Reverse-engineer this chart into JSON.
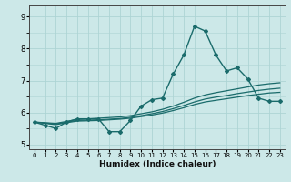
{
  "xlabel": "Humidex (Indice chaleur)",
  "ylabel": "",
  "bg_color": "#cce8e8",
  "line_color": "#1a6b6b",
  "grid_color": "#add4d4",
  "xlim": [
    -0.5,
    23.5
  ],
  "ylim": [
    4.85,
    9.35
  ],
  "yticks": [
    5,
    6,
    7,
    8,
    9
  ],
  "xticks": [
    0,
    1,
    2,
    3,
    4,
    5,
    6,
    7,
    8,
    9,
    10,
    11,
    12,
    13,
    14,
    15,
    16,
    17,
    18,
    19,
    20,
    21,
    22,
    23
  ],
  "series": [
    {
      "x": [
        0,
        1,
        2,
        3,
        4,
        5,
        6,
        7,
        8,
        9,
        10,
        11,
        12,
        13,
        14,
        15,
        16,
        17,
        18,
        19,
        20,
        21,
        22,
        23
      ],
      "y": [
        5.7,
        5.6,
        5.5,
        5.7,
        5.8,
        5.8,
        5.8,
        5.4,
        5.4,
        5.75,
        6.2,
        6.4,
        6.45,
        7.2,
        7.8,
        8.7,
        8.55,
        7.8,
        7.3,
        7.4,
        7.05,
        6.45,
        6.35,
        6.35
      ],
      "marker": "D",
      "markersize": 2.0,
      "linewidth": 1.0
    },
    {
      "x": [
        0,
        1,
        2,
        3,
        4,
        5,
        6,
        7,
        8,
        9,
        10,
        11,
        12,
        13,
        14,
        15,
        16,
        17,
        18,
        19,
        20,
        21,
        22,
        23
      ],
      "y": [
        5.7,
        5.68,
        5.66,
        5.72,
        5.78,
        5.8,
        5.82,
        5.84,
        5.86,
        5.9,
        5.96,
        6.02,
        6.1,
        6.2,
        6.32,
        6.45,
        6.55,
        6.62,
        6.68,
        6.74,
        6.8,
        6.86,
        6.9,
        6.93
      ],
      "marker": null,
      "markersize": 0,
      "linewidth": 0.9
    },
    {
      "x": [
        0,
        1,
        2,
        3,
        4,
        5,
        6,
        7,
        8,
        9,
        10,
        11,
        12,
        13,
        14,
        15,
        16,
        17,
        18,
        19,
        20,
        21,
        22,
        23
      ],
      "y": [
        5.7,
        5.67,
        5.64,
        5.7,
        5.75,
        5.76,
        5.77,
        5.79,
        5.81,
        5.85,
        5.9,
        5.96,
        6.03,
        6.12,
        6.22,
        6.33,
        6.42,
        6.48,
        6.53,
        6.59,
        6.64,
        6.69,
        6.73,
        6.76
      ],
      "marker": null,
      "markersize": 0,
      "linewidth": 0.9
    },
    {
      "x": [
        0,
        1,
        2,
        3,
        4,
        5,
        6,
        7,
        8,
        9,
        10,
        11,
        12,
        13,
        14,
        15,
        16,
        17,
        18,
        19,
        20,
        21,
        22,
        23
      ],
      "y": [
        5.7,
        5.66,
        5.62,
        5.68,
        5.73,
        5.74,
        5.75,
        5.77,
        5.79,
        5.82,
        5.87,
        5.92,
        5.98,
        6.06,
        6.15,
        6.25,
        6.33,
        6.38,
        6.43,
        6.48,
        6.53,
        6.57,
        6.61,
        6.63
      ],
      "marker": null,
      "markersize": 0,
      "linewidth": 0.9
    }
  ]
}
